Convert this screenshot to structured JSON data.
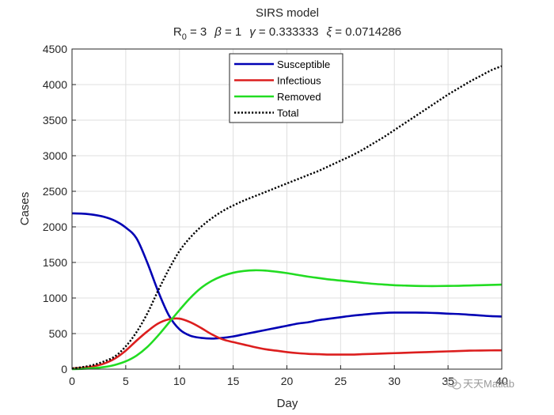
{
  "chart_data": {
    "type": "line",
    "title": "SIRS model",
    "subtitle": {
      "r0_base": "R",
      "r0_sub": "0",
      "r0_val": " = 3",
      "beta_sym": "β",
      "beta_val": " = 1",
      "gamma_sym": "γ",
      "gamma_val": " = 0.333333",
      "xi_sym": "ξ",
      "xi_val": " = 0.0714286"
    },
    "xlabel": "Day",
    "ylabel": "Cases",
    "xlim": [
      0,
      40
    ],
    "ylim": [
      0,
      4500
    ],
    "xticks": [
      0,
      5,
      10,
      15,
      20,
      25,
      30,
      35,
      40
    ],
    "yticks": [
      0,
      500,
      1000,
      1500,
      2000,
      2500,
      3000,
      3500,
      4000,
      4500
    ],
    "grid": true,
    "legend_position": "top-center",
    "series": [
      {
        "name": "Susceptible",
        "color": "#0000b4",
        "style": "solid",
        "points": [
          [
            0,
            2190
          ],
          [
            1,
            2185
          ],
          [
            2,
            2170
          ],
          [
            3,
            2140
          ],
          [
            4,
            2085
          ],
          [
            5,
            1990
          ],
          [
            6,
            1840
          ],
          [
            7,
            1500
          ],
          [
            8,
            1100
          ],
          [
            9,
            760
          ],
          [
            10,
            560
          ],
          [
            11,
            470
          ],
          [
            12,
            440
          ],
          [
            13,
            430
          ],
          [
            14,
            440
          ],
          [
            15,
            460
          ],
          [
            16,
            490
          ],
          [
            17,
            520
          ],
          [
            18,
            550
          ],
          [
            19,
            580
          ],
          [
            20,
            610
          ],
          [
            21,
            640
          ],
          [
            22,
            660
          ],
          [
            23,
            690
          ],
          [
            24,
            710
          ],
          [
            25,
            730
          ],
          [
            26,
            750
          ],
          [
            27,
            765
          ],
          [
            28,
            780
          ],
          [
            29,
            790
          ],
          [
            30,
            795
          ],
          [
            31,
            795
          ],
          [
            32,
            795
          ],
          [
            33,
            793
          ],
          [
            34,
            788
          ],
          [
            35,
            780
          ],
          [
            36,
            775
          ],
          [
            37,
            765
          ],
          [
            38,
            755
          ],
          [
            39,
            745
          ],
          [
            40,
            740
          ]
        ]
      },
      {
        "name": "Infectious",
        "color": "#dc1e1e",
        "style": "solid",
        "points": [
          [
            0,
            10
          ],
          [
            1,
            20
          ],
          [
            2,
            40
          ],
          [
            3,
            80
          ],
          [
            4,
            150
          ],
          [
            5,
            260
          ],
          [
            6,
            400
          ],
          [
            7,
            530
          ],
          [
            8,
            640
          ],
          [
            9,
            700
          ],
          [
            10,
            710
          ],
          [
            11,
            660
          ],
          [
            12,
            580
          ],
          [
            13,
            490
          ],
          [
            14,
            420
          ],
          [
            15,
            380
          ],
          [
            16,
            345
          ],
          [
            17,
            310
          ],
          [
            18,
            280
          ],
          [
            19,
            260
          ],
          [
            20,
            240
          ],
          [
            21,
            225
          ],
          [
            22,
            215
          ],
          [
            23,
            210
          ],
          [
            24,
            205
          ],
          [
            25,
            205
          ],
          [
            26,
            205
          ],
          [
            27,
            210
          ],
          [
            28,
            215
          ],
          [
            29,
            220
          ],
          [
            30,
            225
          ],
          [
            31,
            230
          ],
          [
            32,
            235
          ],
          [
            33,
            240
          ],
          [
            34,
            245
          ],
          [
            35,
            250
          ],
          [
            36,
            255
          ],
          [
            37,
            260
          ],
          [
            38,
            262
          ],
          [
            39,
            264
          ],
          [
            40,
            265
          ]
        ]
      },
      {
        "name": "Removed",
        "color": "#22dc22",
        "style": "solid",
        "points": [
          [
            0,
            0
          ],
          [
            1,
            5
          ],
          [
            2,
            15
          ],
          [
            3,
            30
          ],
          [
            4,
            60
          ],
          [
            5,
            110
          ],
          [
            6,
            190
          ],
          [
            7,
            310
          ],
          [
            8,
            470
          ],
          [
            9,
            650
          ],
          [
            10,
            830
          ],
          [
            11,
            1000
          ],
          [
            12,
            1140
          ],
          [
            13,
            1240
          ],
          [
            14,
            1310
          ],
          [
            15,
            1355
          ],
          [
            16,
            1380
          ],
          [
            17,
            1390
          ],
          [
            18,
            1385
          ],
          [
            19,
            1370
          ],
          [
            20,
            1350
          ],
          [
            21,
            1325
          ],
          [
            22,
            1300
          ],
          [
            23,
            1280
          ],
          [
            24,
            1260
          ],
          [
            25,
            1245
          ],
          [
            26,
            1230
          ],
          [
            27,
            1215
          ],
          [
            28,
            1200
          ],
          [
            29,
            1190
          ],
          [
            30,
            1180
          ],
          [
            31,
            1175
          ],
          [
            32,
            1170
          ],
          [
            33,
            1168
          ],
          [
            34,
            1168
          ],
          [
            35,
            1170
          ],
          [
            36,
            1172
          ],
          [
            37,
            1176
          ],
          [
            38,
            1180
          ],
          [
            39,
            1184
          ],
          [
            40,
            1188
          ]
        ]
      },
      {
        "name": "Total",
        "color": "#000000",
        "style": "dotted",
        "points": [
          [
            0,
            10
          ],
          [
            1,
            30
          ],
          [
            2,
            60
          ],
          [
            3,
            110
          ],
          [
            4,
            180
          ],
          [
            5,
            320
          ],
          [
            6,
            520
          ],
          [
            7,
            780
          ],
          [
            8,
            1100
          ],
          [
            9,
            1400
          ],
          [
            10,
            1660
          ],
          [
            11,
            1850
          ],
          [
            12,
            2000
          ],
          [
            13,
            2120
          ],
          [
            14,
            2220
          ],
          [
            15,
            2300
          ],
          [
            16,
            2370
          ],
          [
            17,
            2430
          ],
          [
            18,
            2490
          ],
          [
            19,
            2550
          ],
          [
            20,
            2610
          ],
          [
            21,
            2670
          ],
          [
            22,
            2730
          ],
          [
            23,
            2790
          ],
          [
            24,
            2860
          ],
          [
            25,
            2930
          ],
          [
            26,
            3000
          ],
          [
            27,
            3080
          ],
          [
            28,
            3170
          ],
          [
            29,
            3260
          ],
          [
            30,
            3360
          ],
          [
            31,
            3460
          ],
          [
            32,
            3560
          ],
          [
            33,
            3660
          ],
          [
            34,
            3760
          ],
          [
            35,
            3860
          ],
          [
            36,
            3950
          ],
          [
            37,
            4040
          ],
          [
            38,
            4120
          ],
          [
            39,
            4200
          ],
          [
            40,
            4260
          ]
        ]
      }
    ]
  },
  "watermark": {
    "icon": "wechat-icon",
    "text": "天天Matlab"
  }
}
